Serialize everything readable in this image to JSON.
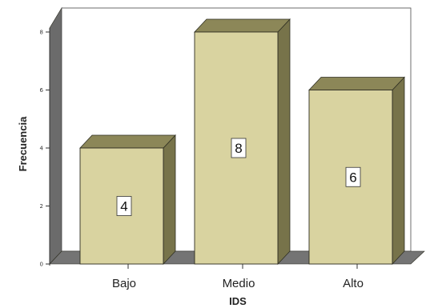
{
  "chart_data": {
    "type": "bar",
    "style": "3d",
    "categories": [
      "Bajo",
      "Medio",
      "Alto"
    ],
    "values": [
      4,
      8,
      6
    ],
    "data_labels": [
      "4",
      "8",
      "6"
    ],
    "title": "",
    "xlabel": "IDS",
    "ylabel": "Frecuencia",
    "ylim": [
      0,
      8
    ],
    "yticks": [
      "0",
      "2",
      "4",
      "6",
      "8"
    ],
    "grid": false,
    "legend": "none",
    "colors": {
      "bar_front": "#d9d3a0",
      "bar_top": "#8c8758",
      "bar_side": "#77734a",
      "floor": "#747474",
      "wall": "#6b6b6b",
      "stroke": "#2e2e22",
      "label_box": "#ffffff"
    }
  }
}
